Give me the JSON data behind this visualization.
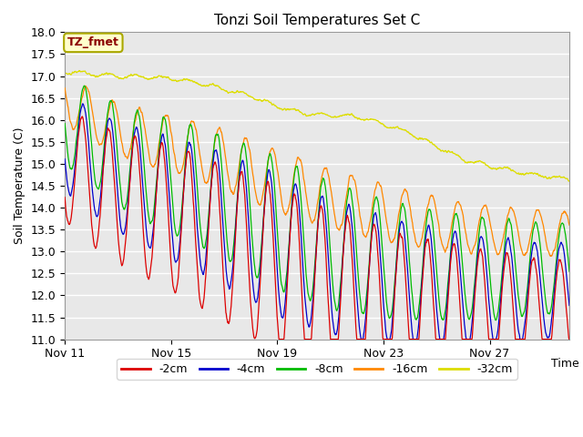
{
  "title": "Tonzi Soil Temperatures Set C",
  "ylabel": "Soil Temperature (C)",
  "xlabel": "Time",
  "ylim": [
    11.0,
    18.0
  ],
  "yticks": [
    11.0,
    11.5,
    12.0,
    12.5,
    13.0,
    13.5,
    14.0,
    14.5,
    15.0,
    15.5,
    16.0,
    16.5,
    17.0,
    17.5,
    18.0
  ],
  "xtick_labels": [
    "Nov 11",
    "Nov 15",
    "Nov 19",
    "Nov 23",
    "Nov 27"
  ],
  "xtick_positions": [
    0,
    4,
    8,
    12,
    16
  ],
  "legend_label": "TZ_fmet",
  "series_labels": [
    "-2cm",
    "-4cm",
    "-8cm",
    "-16cm",
    "-32cm"
  ],
  "series_colors": [
    "#dd0000",
    "#0000cc",
    "#00bb00",
    "#ff8800",
    "#dddd00"
  ],
  "bg_color": "#e8e8e8",
  "n_days": 19
}
